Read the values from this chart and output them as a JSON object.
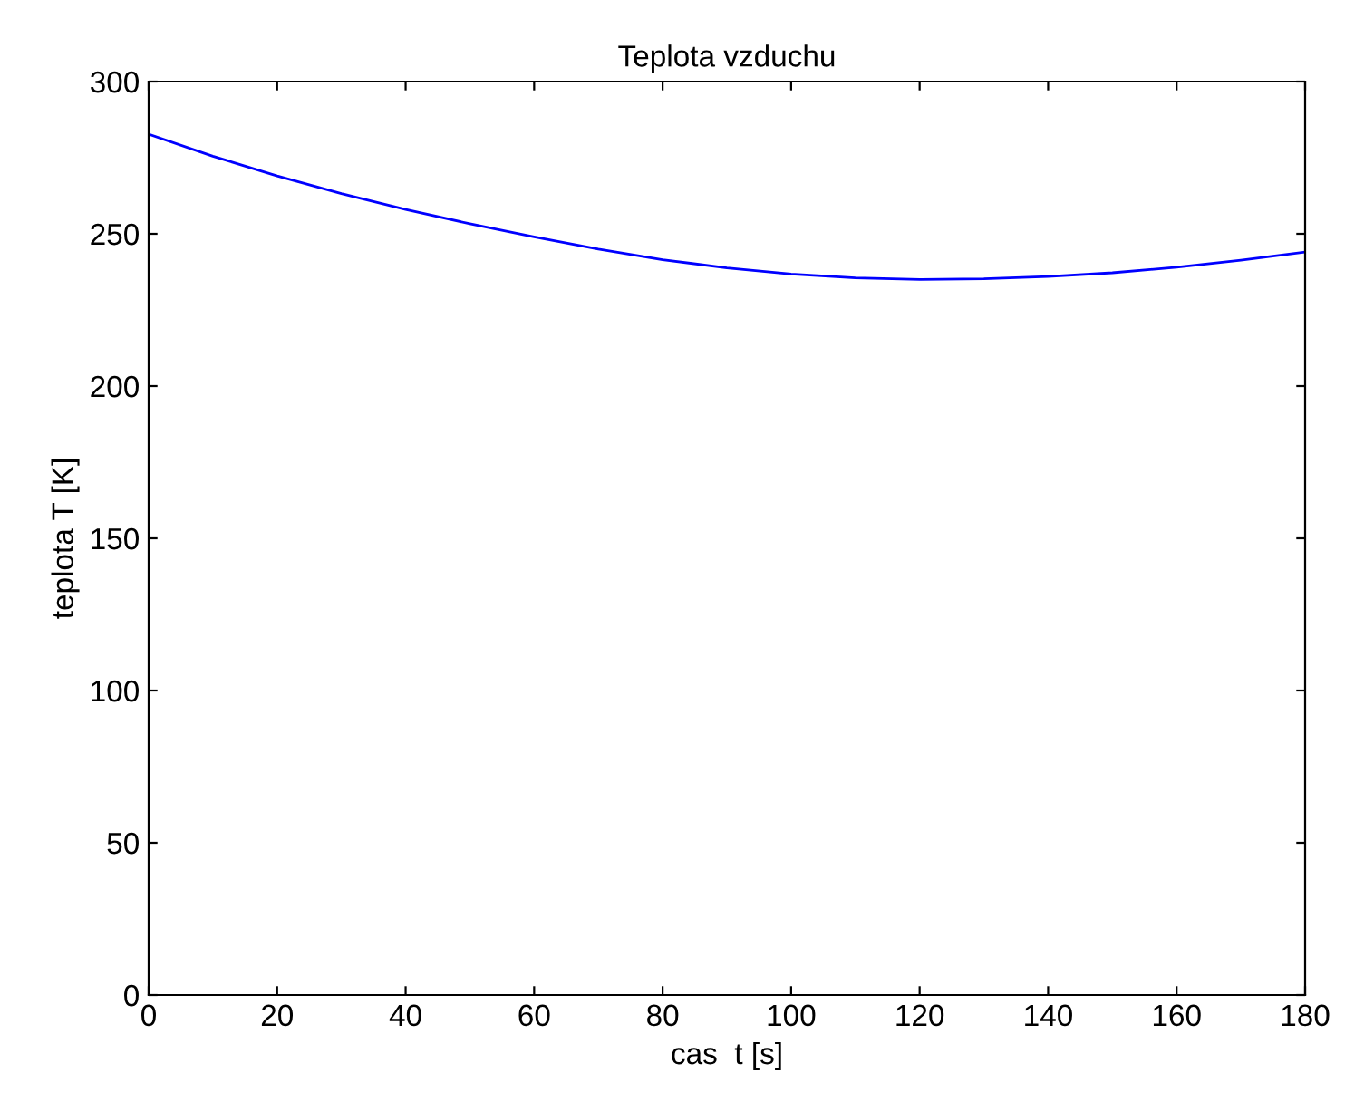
{
  "chart_data": {
    "type": "line",
    "title": "Teplota vzduchu",
    "xlabel": "cas  t [s]",
    "ylabel": "teplota T [K]",
    "x": [
      0,
      10,
      20,
      30,
      40,
      50,
      60,
      70,
      80,
      90,
      100,
      110,
      120,
      130,
      140,
      150,
      160,
      170,
      180
    ],
    "series": [
      {
        "color": "#0000ff",
        "values": [
          282.7,
          275.5,
          269,
          263.2,
          258,
          253.3,
          249,
          245,
          241.5,
          238.8,
          236.8,
          235.5,
          235,
          235.2,
          236,
          237.2,
          239,
          241.3,
          244
        ]
      }
    ],
    "xlim": [
      0,
      180
    ],
    "ylim": [
      0,
      300
    ],
    "xticks": [
      0,
      20,
      40,
      60,
      80,
      100,
      120,
      140,
      160,
      180
    ],
    "yticks": [
      0,
      50,
      100,
      150,
      200,
      250,
      300
    ],
    "grid": false,
    "legend": false,
    "marker": "none",
    "line_style": "solid"
  }
}
